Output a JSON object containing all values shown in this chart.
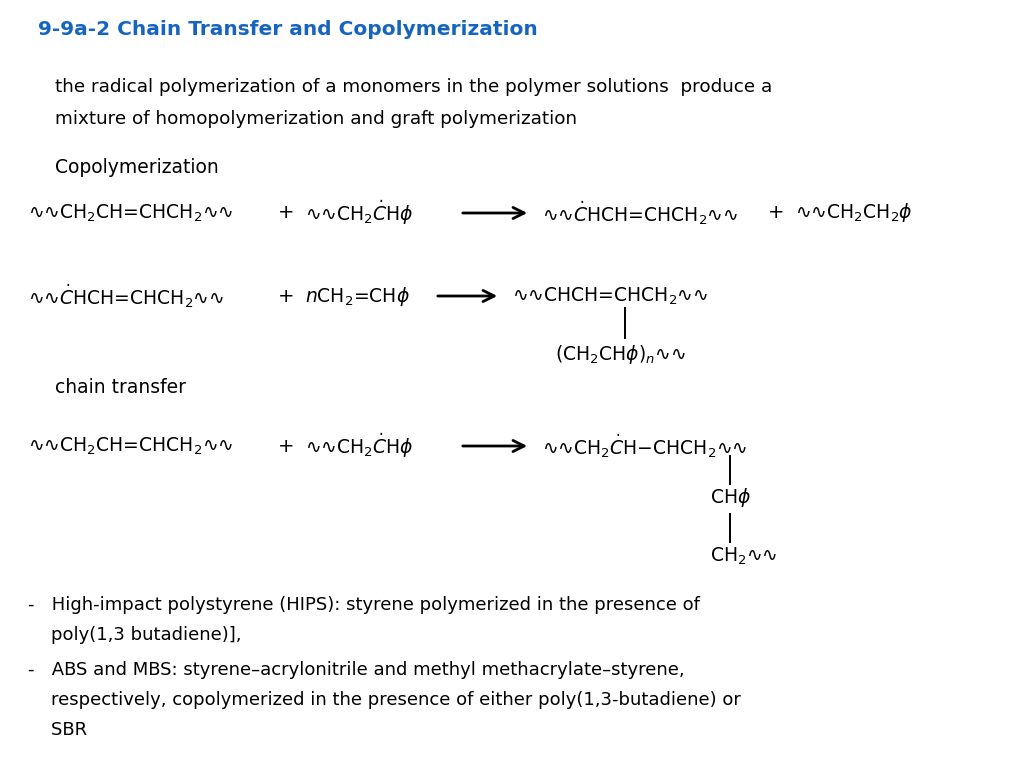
{
  "title": "9-9a-2 Chain Transfer and Copolymerization",
  "title_color": "#1565C0",
  "bg_color": "#ffffff",
  "figsize": [
    10.24,
    7.68
  ],
  "dpi": 100,
  "intro_line1": "the radical polymerization of a monomers in the polymer solutions  produce a",
  "intro_line2": "mixture of homopolymerization and graft polymerization",
  "section1": "Copolymerization",
  "section2": "chain transfer",
  "bullet1_line1": "-   High-impact polystyrene (HIPS): styrene polymerized in the presence of",
  "bullet1_line2": "    poly(1,3 butadiene)],",
  "bullet2_line1": "-   ABS and MBS: styrene–acrylonitrile and methyl methacrylate–styrene,",
  "bullet2_line2": "    respectively, copolymerized in the presence of either poly(1,3-butadiene) or",
  "bullet2_line3": "    SBR",
  "wave": "∿∿"
}
